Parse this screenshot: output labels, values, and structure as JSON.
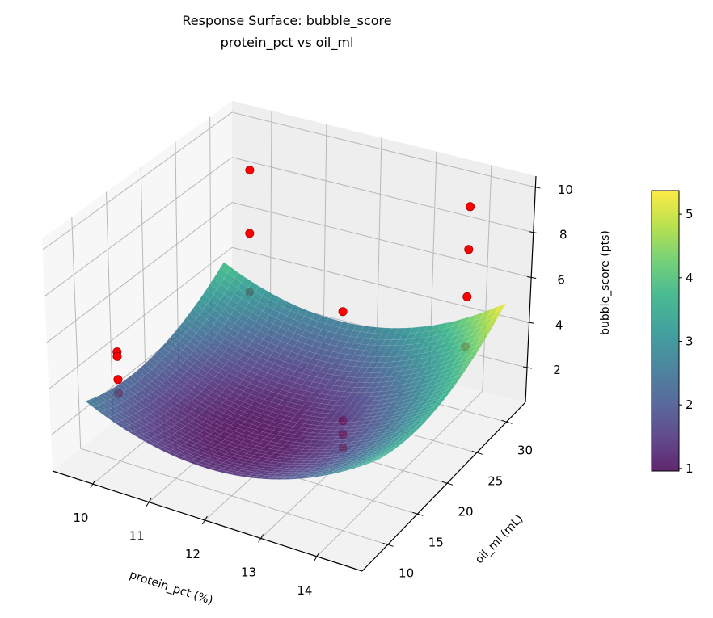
{
  "chart_data": {
    "type": "surface",
    "title": "Response Surface: bubble_score",
    "subtitle": "protein_pct vs oil_ml",
    "xlabel": "protein_pct (%)",
    "ylabel": "oil_ml (mL)",
    "zlabel": "bubble_score (pts)",
    "xlim": [
      9.28,
      14.81
    ],
    "ylim": [
      5.7,
      33.2
    ],
    "zlim": [
      0.46,
      10.5
    ],
    "xticks": [
      "10",
      "11",
      "12",
      "13",
      "14"
    ],
    "yticks": [
      "10",
      "15",
      "20",
      "25",
      "30"
    ],
    "zticks": [
      "2",
      "4",
      "6",
      "8",
      "10"
    ],
    "grid": true,
    "view": {
      "elevation_deg": 30,
      "azimuth_deg": -60
    },
    "colorbar": {
      "cmap": "viridis",
      "range": [
        0.96,
        5.37
      ],
      "ticks": [
        "1",
        "2",
        "3",
        "4",
        "5"
      ],
      "placement": "right"
    },
    "surface": {
      "x_range": [
        9.4,
        14.6
      ],
      "y_range": [
        10,
        31
      ],
      "model": {
        "intercept": 0.95,
        "x_center": 12,
        "y_center": 17,
        "x_linear": 0.27,
        "x_quadratic": 0.283,
        "y_quadratic": 0.009
      },
      "alpha": 0.85
    },
    "points": [
      {
        "x": 10,
        "y": 10,
        "z": 5.2
      },
      {
        "x": 10,
        "y": 10,
        "z": 5.0
      },
      {
        "x": 10,
        "y": 10,
        "z": 4.0
      },
      {
        "x": 10,
        "y": 10,
        "z": 3.4
      },
      {
        "x": 10,
        "y": 30,
        "z": 8.6
      },
      {
        "x": 10,
        "y": 30,
        "z": 5.8
      },
      {
        "x": 10,
        "y": 30,
        "z": 3.2
      },
      {
        "x": 14,
        "y": 10,
        "z": 10.1
      },
      {
        "x": 14,
        "y": 10,
        "z": 5.3
      },
      {
        "x": 14,
        "y": 10,
        "z": 4.7
      },
      {
        "x": 14,
        "y": 10,
        "z": 4.1
      },
      {
        "x": 14,
        "y": 30,
        "z": 9.5
      },
      {
        "x": 14,
        "y": 30,
        "z": 7.6
      },
      {
        "x": 14,
        "y": 30,
        "z": 5.5
      },
      {
        "x": 14,
        "y": 30,
        "z": 3.3
      }
    ],
    "point_color": "#ff0000",
    "point_edge_color": "#8b0000",
    "pane_colors": {
      "left": "#f7f7f7",
      "back": "#eeeeee",
      "floor": "#f2f2f2"
    },
    "grid_color": "#b8b8b8"
  }
}
